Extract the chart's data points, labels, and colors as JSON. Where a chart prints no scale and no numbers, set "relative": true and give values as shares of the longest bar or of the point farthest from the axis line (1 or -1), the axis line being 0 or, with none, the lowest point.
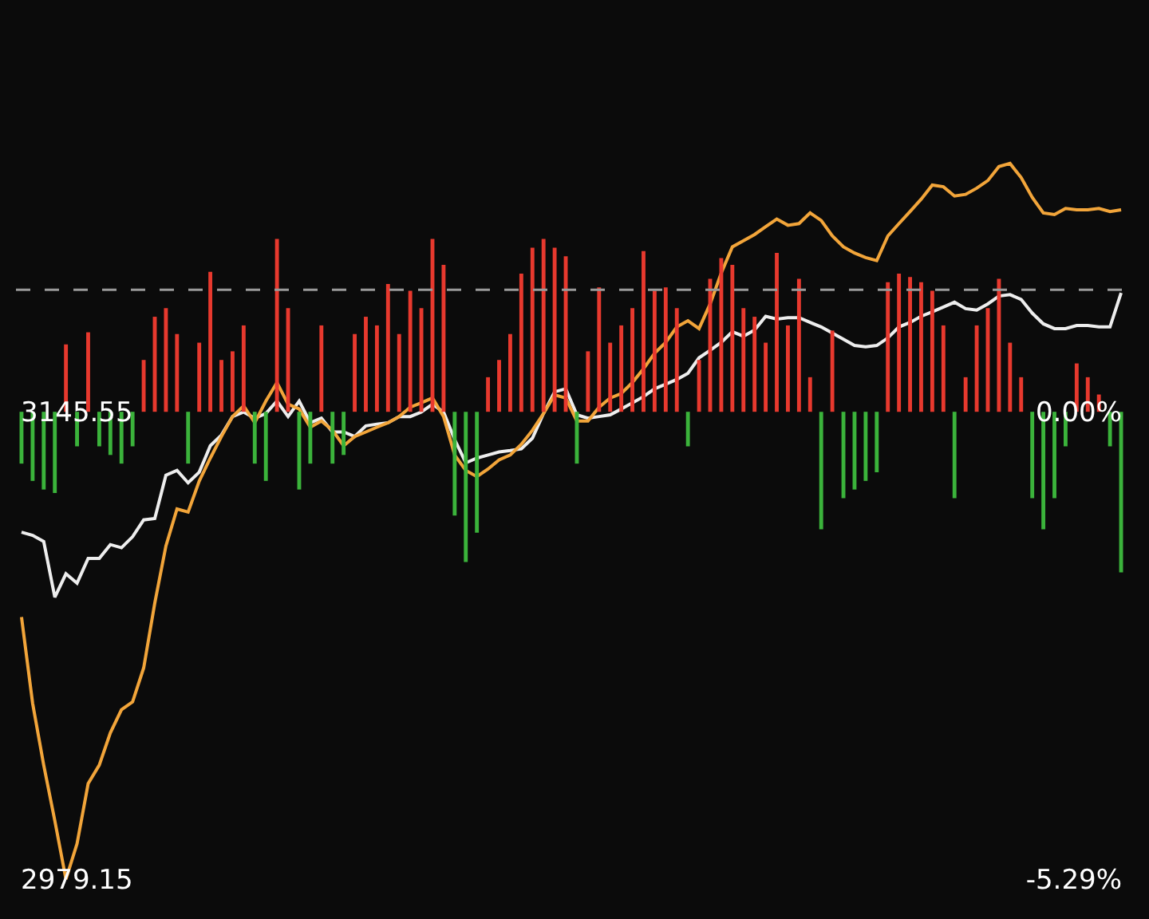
{
  "chart_data": [
    {
      "type": "line",
      "ylim": [
        2965,
        3292.2
      ],
      "yticks": [
        2979.15,
        3145.55
      ],
      "y2lim": [
        -5.74,
        4.66
      ],
      "y2ticks": [
        {
          "value": -5.29,
          "label": "-5.29%"
        },
        {
          "value": 0,
          "label": "0.00%"
        }
      ],
      "legend": false,
      "marker": "none",
      "line_style": "solid",
      "categories": [
        null,
        null,
        null,
        null,
        null,
        null,
        null,
        null,
        null,
        null,
        null,
        null,
        null,
        null,
        null,
        null,
        null,
        null,
        null,
        null,
        null,
        null,
        null,
        null,
        null,
        null,
        null,
        null,
        null,
        null,
        null,
        null,
        null,
        null,
        null,
        null,
        null,
        null,
        null,
        null,
        null,
        null,
        null,
        null,
        null,
        null,
        null,
        null,
        null,
        null,
        null,
        null,
        null,
        null,
        null,
        null,
        null,
        null,
        null,
        null,
        null,
        null,
        null,
        null,
        null,
        null,
        null,
        null,
        null,
        null,
        null,
        null,
        null,
        null,
        null,
        null,
        null,
        null,
        null,
        null,
        null,
        null,
        null,
        null,
        null,
        null,
        null,
        null,
        null,
        null,
        null,
        null,
        null,
        null,
        null,
        null,
        null,
        null,
        null,
        null
      ],
      "ref_lines": [
        {
          "axis": "y",
          "value": 3189.0,
          "color": "#9a9a9a",
          "line_style": "dashed"
        }
      ],
      "series": [
        {
          "color": "#eeeeee",
          "values": [
            3102.7,
            3101.6,
            3099.4,
            3079.6,
            3087.9,
            3084.6,
            3093.4,
            3093.4,
            3098.3,
            3097.2,
            3101.1,
            3107.1,
            3107.6,
            3123.0,
            3124.7,
            3120.3,
            3124.1,
            3133.5,
            3137.3,
            3143.9,
            3145.5,
            3143.3,
            3145.0,
            3149.4,
            3143.9,
            3149.4,
            3141.7,
            3143.3,
            3138.4,
            3138.4,
            3136.8,
            3140.6,
            3141.2,
            3141.7,
            3143.9,
            3143.9,
            3145.5,
            3148.3,
            3145.5,
            3135.7,
            3127.4,
            3129.1,
            3130.2,
            3131.3,
            3131.8,
            3132.4,
            3136.2,
            3145.0,
            3152.7,
            3153.8,
            3144.5,
            3143.3,
            3143.9,
            3144.5,
            3146.6,
            3148.8,
            3151.0,
            3153.8,
            3155.4,
            3157.1,
            3159.3,
            3164.8,
            3167.5,
            3170.3,
            3174.1,
            3172.5,
            3174.7,
            3179.6,
            3178.6,
            3179.1,
            3179.1,
            3177.4,
            3175.8,
            3173.6,
            3171.4,
            3169.2,
            3168.7,
            3169.2,
            3171.9,
            3175.8,
            3177.4,
            3179.6,
            3181.2,
            3182.9,
            3184.6,
            3182.3,
            3181.8,
            3184.0,
            3186.8,
            3187.3,
            3185.6,
            3180.7,
            3176.9,
            3175.2,
            3175.2,
            3176.3,
            3176.3,
            3175.8,
            3175.8,
            3187.9
          ]
        },
        {
          "color": "#f2a53a",
          "values": [
            3072.5,
            3041.8,
            3019.8,
            3000.0,
            2979.15,
            2991.8,
            3013.2,
            3019.8,
            3031.3,
            3039.5,
            3042.3,
            3054.4,
            3077.5,
            3097.8,
            3111.0,
            3109.9,
            3120.9,
            3129.1,
            3136.8,
            3143.9,
            3147.7,
            3141.7,
            3149.4,
            3156.0,
            3148.3,
            3146.6,
            3140.1,
            3142.3,
            3139.0,
            3133.5,
            3136.8,
            3138.4,
            3140.1,
            3141.7,
            3143.9,
            3147.2,
            3148.8,
            3150.5,
            3143.9,
            3130.2,
            3124.7,
            3122.5,
            3125.2,
            3128.5,
            3130.2,
            3134.0,
            3139.0,
            3145.0,
            3151.6,
            3150.5,
            3142.3,
            3142.3,
            3147.2,
            3150.5,
            3152.1,
            3156.0,
            3160.9,
            3166.4,
            3170.3,
            3175.8,
            3178.0,
            3175.2,
            3184.0,
            3195.0,
            3204.3,
            3206.5,
            3208.7,
            3211.5,
            3214.2,
            3212.0,
            3212.6,
            3216.4,
            3213.7,
            3208.2,
            3204.3,
            3202.1,
            3200.5,
            3199.4,
            3208.2,
            3212.6,
            3216.9,
            3221.3,
            3226.3,
            3225.7,
            3222.4,
            3223.0,
            3225.2,
            3227.9,
            3232.9,
            3234.0,
            3229.0,
            3221.9,
            3216.4,
            3215.8,
            3218.0,
            3217.5,
            3217.5,
            3218.0,
            3216.9,
            3217.5
          ]
        }
      ]
    },
    {
      "type": "bar",
      "relative": true,
      "legend": false,
      "categories": [
        null,
        null,
        null,
        null,
        null,
        null,
        null,
        null,
        null,
        null,
        null,
        null,
        null,
        null,
        null,
        null,
        null,
        null,
        null,
        null,
        null,
        null,
        null,
        null,
        null,
        null,
        null,
        null,
        null,
        null,
        null,
        null,
        null,
        null,
        null,
        null,
        null,
        null,
        null,
        null,
        null,
        null,
        null,
        null,
        null,
        null,
        null,
        null,
        null,
        null,
        null,
        null,
        null,
        null,
        null,
        null,
        null,
        null,
        null,
        null,
        null,
        null,
        null,
        null,
        null,
        null,
        null,
        null,
        null,
        null,
        null,
        null,
        null,
        null,
        null,
        null,
        null,
        null,
        null,
        null,
        null,
        null,
        null,
        null,
        null,
        null,
        null,
        null,
        null,
        null,
        null,
        null,
        null,
        null,
        null,
        null,
        null,
        null,
        null,
        null
      ],
      "values": [
        -0.3,
        -0.4,
        -0.45,
        -0.47,
        0.39,
        -0.2,
        0.46,
        -0.2,
        -0.25,
        -0.3,
        -0.2,
        0.3,
        0.55,
        0.6,
        0.45,
        -0.3,
        0.4,
        0.81,
        0.3,
        0.35,
        0.5,
        -0.3,
        -0.4,
        1.0,
        0.6,
        -0.45,
        -0.3,
        0.5,
        -0.3,
        -0.25,
        0.45,
        0.55,
        0.5,
        0.74,
        0.45,
        0.7,
        0.6,
        1.0,
        0.85,
        -0.6,
        -0.87,
        -0.7,
        0.2,
        0.3,
        0.45,
        0.8,
        0.95,
        1.0,
        0.95,
        0.9,
        -0.3,
        0.35,
        0.72,
        0.4,
        0.5,
        0.6,
        0.93,
        0.7,
        0.72,
        0.6,
        -0.2,
        0.3,
        0.77,
        0.89,
        0.85,
        0.6,
        0.55,
        0.4,
        0.92,
        0.5,
        0.77,
        0.2,
        -0.68,
        0.47,
        -0.5,
        -0.45,
        -0.4,
        -0.35,
        0.75,
        0.8,
        0.78,
        0.75,
        0.7,
        0.5,
        -0.5,
        0.2,
        0.5,
        0.6,
        0.77,
        0.4,
        0.2,
        -0.5,
        -0.68,
        -0.5,
        -0.2,
        0.28,
        0.2,
        0.1,
        -0.2,
        -0.93
      ],
      "colors": [
        "#3bb33b",
        "#3bb33b",
        "#3bb33b",
        "#3bb33b",
        "#e8392e",
        "#3bb33b",
        "#e8392e",
        "#3bb33b",
        "#3bb33b",
        "#3bb33b",
        "#3bb33b",
        "#e8392e",
        "#e8392e",
        "#e8392e",
        "#e8392e",
        "#3bb33b",
        "#e8392e",
        "#e8392e",
        "#e8392e",
        "#e8392e",
        "#e8392e",
        "#3bb33b",
        "#3bb33b",
        "#e8392e",
        "#e8392e",
        "#3bb33b",
        "#3bb33b",
        "#e8392e",
        "#3bb33b",
        "#3bb33b",
        "#e8392e",
        "#e8392e",
        "#e8392e",
        "#e8392e",
        "#e8392e",
        "#e8392e",
        "#e8392e",
        "#e8392e",
        "#e8392e",
        "#3bb33b",
        "#3bb33b",
        "#3bb33b",
        "#e8392e",
        "#e8392e",
        "#e8392e",
        "#e8392e",
        "#e8392e",
        "#e8392e",
        "#e8392e",
        "#e8392e",
        "#3bb33b",
        "#e8392e",
        "#e8392e",
        "#e8392e",
        "#e8392e",
        "#e8392e",
        "#e8392e",
        "#e8392e",
        "#e8392e",
        "#e8392e",
        "#3bb33b",
        "#e8392e",
        "#e8392e",
        "#e8392e",
        "#e8392e",
        "#e8392e",
        "#e8392e",
        "#e8392e",
        "#e8392e",
        "#e8392e",
        "#e8392e",
        "#e8392e",
        "#3bb33b",
        "#e8392e",
        "#3bb33b",
        "#3bb33b",
        "#3bb33b",
        "#3bb33b",
        "#e8392e",
        "#e8392e",
        "#e8392e",
        "#e8392e",
        "#e8392e",
        "#e8392e",
        "#3bb33b",
        "#e8392e",
        "#e8392e",
        "#e8392e",
        "#e8392e",
        "#e8392e",
        "#e8392e",
        "#3bb33b",
        "#3bb33b",
        "#3bb33b",
        "#3bb33b",
        "#e8392e",
        "#e8392e",
        "#e8392e",
        "#3bb33b",
        "#3bb33b"
      ]
    }
  ]
}
